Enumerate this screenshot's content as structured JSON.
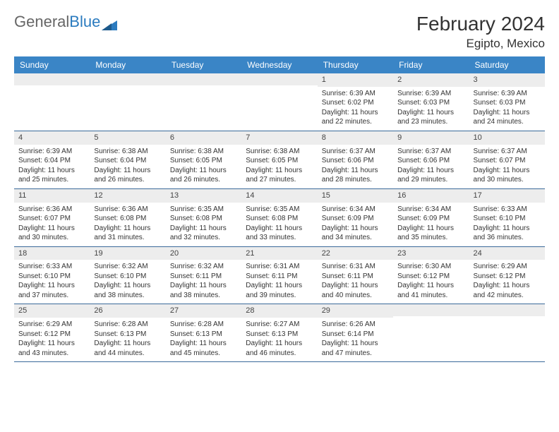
{
  "logo": {
    "text1": "General",
    "text2": "Blue"
  },
  "title": "February 2024",
  "location": "Egipto, Mexico",
  "colors": {
    "header_bg": "#3a85c6",
    "header_text": "#ffffff",
    "daynum_bg": "#ededed",
    "week_border": "#3a6a9a",
    "text": "#333333",
    "logo_blue": "#2b7bbf"
  },
  "fonts": {
    "title_pt": 28,
    "location_pt": 17,
    "header_pt": 12,
    "cell_pt": 10
  },
  "day_names": [
    "Sunday",
    "Monday",
    "Tuesday",
    "Wednesday",
    "Thursday",
    "Friday",
    "Saturday"
  ],
  "weeks": [
    [
      null,
      null,
      null,
      null,
      {
        "n": "1",
        "sunrise": "6:39 AM",
        "sunset": "6:02 PM",
        "dl1": "Daylight: 11 hours",
        "dl2": "and 22 minutes."
      },
      {
        "n": "2",
        "sunrise": "6:39 AM",
        "sunset": "6:03 PM",
        "dl1": "Daylight: 11 hours",
        "dl2": "and 23 minutes."
      },
      {
        "n": "3",
        "sunrise": "6:39 AM",
        "sunset": "6:03 PM",
        "dl1": "Daylight: 11 hours",
        "dl2": "and 24 minutes."
      }
    ],
    [
      {
        "n": "4",
        "sunrise": "6:39 AM",
        "sunset": "6:04 PM",
        "dl1": "Daylight: 11 hours",
        "dl2": "and 25 minutes."
      },
      {
        "n": "5",
        "sunrise": "6:38 AM",
        "sunset": "6:04 PM",
        "dl1": "Daylight: 11 hours",
        "dl2": "and 26 minutes."
      },
      {
        "n": "6",
        "sunrise": "6:38 AM",
        "sunset": "6:05 PM",
        "dl1": "Daylight: 11 hours",
        "dl2": "and 26 minutes."
      },
      {
        "n": "7",
        "sunrise": "6:38 AM",
        "sunset": "6:05 PM",
        "dl1": "Daylight: 11 hours",
        "dl2": "and 27 minutes."
      },
      {
        "n": "8",
        "sunrise": "6:37 AM",
        "sunset": "6:06 PM",
        "dl1": "Daylight: 11 hours",
        "dl2": "and 28 minutes."
      },
      {
        "n": "9",
        "sunrise": "6:37 AM",
        "sunset": "6:06 PM",
        "dl1": "Daylight: 11 hours",
        "dl2": "and 29 minutes."
      },
      {
        "n": "10",
        "sunrise": "6:37 AM",
        "sunset": "6:07 PM",
        "dl1": "Daylight: 11 hours",
        "dl2": "and 30 minutes."
      }
    ],
    [
      {
        "n": "11",
        "sunrise": "6:36 AM",
        "sunset": "6:07 PM",
        "dl1": "Daylight: 11 hours",
        "dl2": "and 30 minutes."
      },
      {
        "n": "12",
        "sunrise": "6:36 AM",
        "sunset": "6:08 PM",
        "dl1": "Daylight: 11 hours",
        "dl2": "and 31 minutes."
      },
      {
        "n": "13",
        "sunrise": "6:35 AM",
        "sunset": "6:08 PM",
        "dl1": "Daylight: 11 hours",
        "dl2": "and 32 minutes."
      },
      {
        "n": "14",
        "sunrise": "6:35 AM",
        "sunset": "6:08 PM",
        "dl1": "Daylight: 11 hours",
        "dl2": "and 33 minutes."
      },
      {
        "n": "15",
        "sunrise": "6:34 AM",
        "sunset": "6:09 PM",
        "dl1": "Daylight: 11 hours",
        "dl2": "and 34 minutes."
      },
      {
        "n": "16",
        "sunrise": "6:34 AM",
        "sunset": "6:09 PM",
        "dl1": "Daylight: 11 hours",
        "dl2": "and 35 minutes."
      },
      {
        "n": "17",
        "sunrise": "6:33 AM",
        "sunset": "6:10 PM",
        "dl1": "Daylight: 11 hours",
        "dl2": "and 36 minutes."
      }
    ],
    [
      {
        "n": "18",
        "sunrise": "6:33 AM",
        "sunset": "6:10 PM",
        "dl1": "Daylight: 11 hours",
        "dl2": "and 37 minutes."
      },
      {
        "n": "19",
        "sunrise": "6:32 AM",
        "sunset": "6:10 PM",
        "dl1": "Daylight: 11 hours",
        "dl2": "and 38 minutes."
      },
      {
        "n": "20",
        "sunrise": "6:32 AM",
        "sunset": "6:11 PM",
        "dl1": "Daylight: 11 hours",
        "dl2": "and 38 minutes."
      },
      {
        "n": "21",
        "sunrise": "6:31 AM",
        "sunset": "6:11 PM",
        "dl1": "Daylight: 11 hours",
        "dl2": "and 39 minutes."
      },
      {
        "n": "22",
        "sunrise": "6:31 AM",
        "sunset": "6:11 PM",
        "dl1": "Daylight: 11 hours",
        "dl2": "and 40 minutes."
      },
      {
        "n": "23",
        "sunrise": "6:30 AM",
        "sunset": "6:12 PM",
        "dl1": "Daylight: 11 hours",
        "dl2": "and 41 minutes."
      },
      {
        "n": "24",
        "sunrise": "6:29 AM",
        "sunset": "6:12 PM",
        "dl1": "Daylight: 11 hours",
        "dl2": "and 42 minutes."
      }
    ],
    [
      {
        "n": "25",
        "sunrise": "6:29 AM",
        "sunset": "6:12 PM",
        "dl1": "Daylight: 11 hours",
        "dl2": "and 43 minutes."
      },
      {
        "n": "26",
        "sunrise": "6:28 AM",
        "sunset": "6:13 PM",
        "dl1": "Daylight: 11 hours",
        "dl2": "and 44 minutes."
      },
      {
        "n": "27",
        "sunrise": "6:28 AM",
        "sunset": "6:13 PM",
        "dl1": "Daylight: 11 hours",
        "dl2": "and 45 minutes."
      },
      {
        "n": "28",
        "sunrise": "6:27 AM",
        "sunset": "6:13 PM",
        "dl1": "Daylight: 11 hours",
        "dl2": "and 46 minutes."
      },
      {
        "n": "29",
        "sunrise": "6:26 AM",
        "sunset": "6:14 PM",
        "dl1": "Daylight: 11 hours",
        "dl2": "and 47 minutes."
      },
      null,
      null
    ]
  ],
  "labels": {
    "sunrise_prefix": "Sunrise: ",
    "sunset_prefix": "Sunset: "
  }
}
